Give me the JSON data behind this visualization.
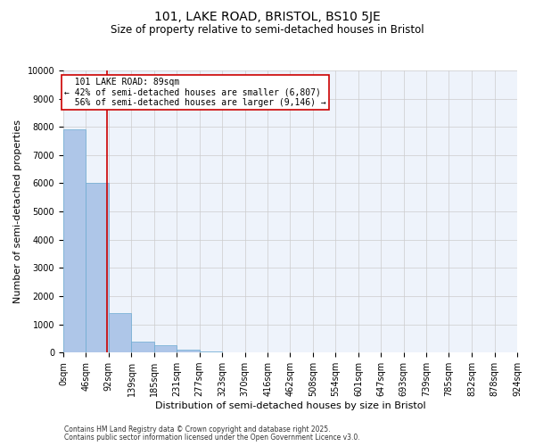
{
  "title": "101, LAKE ROAD, BRISTOL, BS10 5JE",
  "subtitle": "Size of property relative to semi-detached houses in Bristol",
  "xlabel": "Distribution of semi-detached houses by size in Bristol",
  "ylabel": "Number of semi-detached properties",
  "bin_edges": [
    0,
    46,
    92,
    139,
    185,
    231,
    277,
    323,
    370,
    416,
    462,
    508,
    554,
    601,
    647,
    693,
    739,
    785,
    832,
    878,
    924
  ],
  "bar_heights": [
    7900,
    6000,
    1400,
    400,
    250,
    100,
    50,
    20,
    10,
    5,
    3,
    2,
    1,
    1,
    0,
    0,
    0,
    0,
    0,
    0
  ],
  "bar_color": "#aec6e8",
  "bar_edge_color": "#6aabd2",
  "property_size": 89,
  "property_label": "101 LAKE ROAD: 89sqm",
  "pct_smaller": 42,
  "pct_larger": 56,
  "n_smaller": 6807,
  "n_larger": 9146,
  "vline_color": "#cc0000",
  "annotation_box_color": "#cc0000",
  "ylim": [
    0,
    10000
  ],
  "yticks": [
    0,
    1000,
    2000,
    3000,
    4000,
    5000,
    6000,
    7000,
    8000,
    9000,
    10000
  ],
  "grid_color": "#cccccc",
  "bg_color": "#eef3fb",
  "footnote1": "Contains HM Land Registry data © Crown copyright and database right 2025.",
  "footnote2": "Contains public sector information licensed under the Open Government Licence v3.0.",
  "title_fontsize": 10,
  "subtitle_fontsize": 8.5,
  "tick_fontsize": 7,
  "label_fontsize": 8,
  "annotation_fontsize": 7,
  "footnote_fontsize": 5.5
}
